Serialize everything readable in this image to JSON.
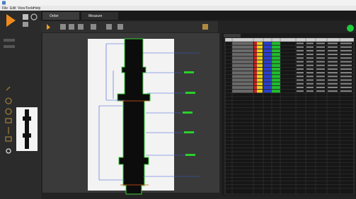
{
  "menu": [
    "File",
    "Edit",
    "View",
    "Tools",
    "Help"
  ],
  "tabs": [
    "Order",
    "Measure"
  ]
}
